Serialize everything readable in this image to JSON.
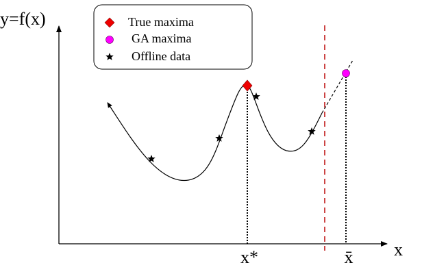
{
  "y_axis_label": "y=f(x)",
  "x_axis_label": "x",
  "legend": {
    "items": [
      {
        "label": "True maxima"
      },
      {
        "label": "GA maxima"
      },
      {
        "label": "Offline data"
      }
    ]
  },
  "markers": {
    "true_optimum": "x*",
    "ga_optimum": "x̄"
  }
}
